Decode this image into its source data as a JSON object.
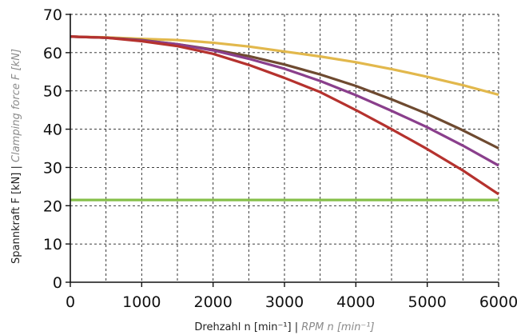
{
  "chart_data": {
    "type": "line",
    "title": "",
    "xlabel": {
      "main": "Drehzahl n [min⁻¹] | ",
      "alt": "RPM n [min⁻¹]"
    },
    "ylabel": {
      "main": "Spannkraft F [kN] | ",
      "alt": "Clamping force F [kN]"
    },
    "xlim": [
      0,
      6000
    ],
    "ylim": [
      0,
      70
    ],
    "xticks": [
      0,
      1000,
      2000,
      3000,
      4000,
      5000,
      6000
    ],
    "yticks": [
      0,
      10,
      20,
      30,
      40,
      50,
      60,
      70
    ],
    "grid": true,
    "grid_style": "dashed",
    "legend": "none",
    "series": [
      {
        "color": "#e2b84c",
        "x": [
          0,
          500,
          1000,
          1500,
          2000,
          2500,
          3000,
          3500,
          4000,
          4500,
          5000,
          5500,
          6000
        ],
        "y": [
          64.2,
          64.0,
          63.6,
          63.3,
          62.6,
          61.6,
          60.3,
          59.0,
          57.5,
          55.7,
          53.7,
          51.5,
          49.0
        ]
      },
      {
        "color": "#6e4a30",
        "x": [
          0,
          500,
          1000,
          1500,
          2000,
          2500,
          3000,
          3500,
          4000,
          4500,
          5000,
          5500,
          6000
        ],
        "y": [
          64.2,
          63.9,
          63.3,
          62.2,
          60.8,
          59.1,
          56.9,
          54.3,
          51.3,
          47.8,
          44.0,
          39.7,
          35.0
        ]
      },
      {
        "color": "#8a3f8c",
        "x": [
          0,
          500,
          1000,
          1500,
          2000,
          2500,
          3000,
          3500,
          4000,
          4500,
          5000,
          5500,
          6000
        ],
        "y": [
          64.2,
          63.9,
          63.2,
          62.2,
          60.6,
          58.4,
          55.8,
          52.6,
          48.9,
          44.8,
          40.5,
          35.7,
          30.5
        ]
      },
      {
        "color": "#b5322e",
        "x": [
          0,
          500,
          1000,
          1500,
          2000,
          2500,
          3000,
          3500,
          4000,
          4500,
          5000,
          5500,
          6000
        ],
        "y": [
          64.2,
          63.9,
          63.0,
          61.7,
          59.7,
          56.8,
          53.4,
          49.7,
          45.0,
          40.0,
          34.8,
          29.2,
          23.0
        ]
      },
      {
        "color": "#86bf4a",
        "x": [
          0,
          6000
        ],
        "y": [
          21.5,
          21.5
        ]
      }
    ]
  }
}
